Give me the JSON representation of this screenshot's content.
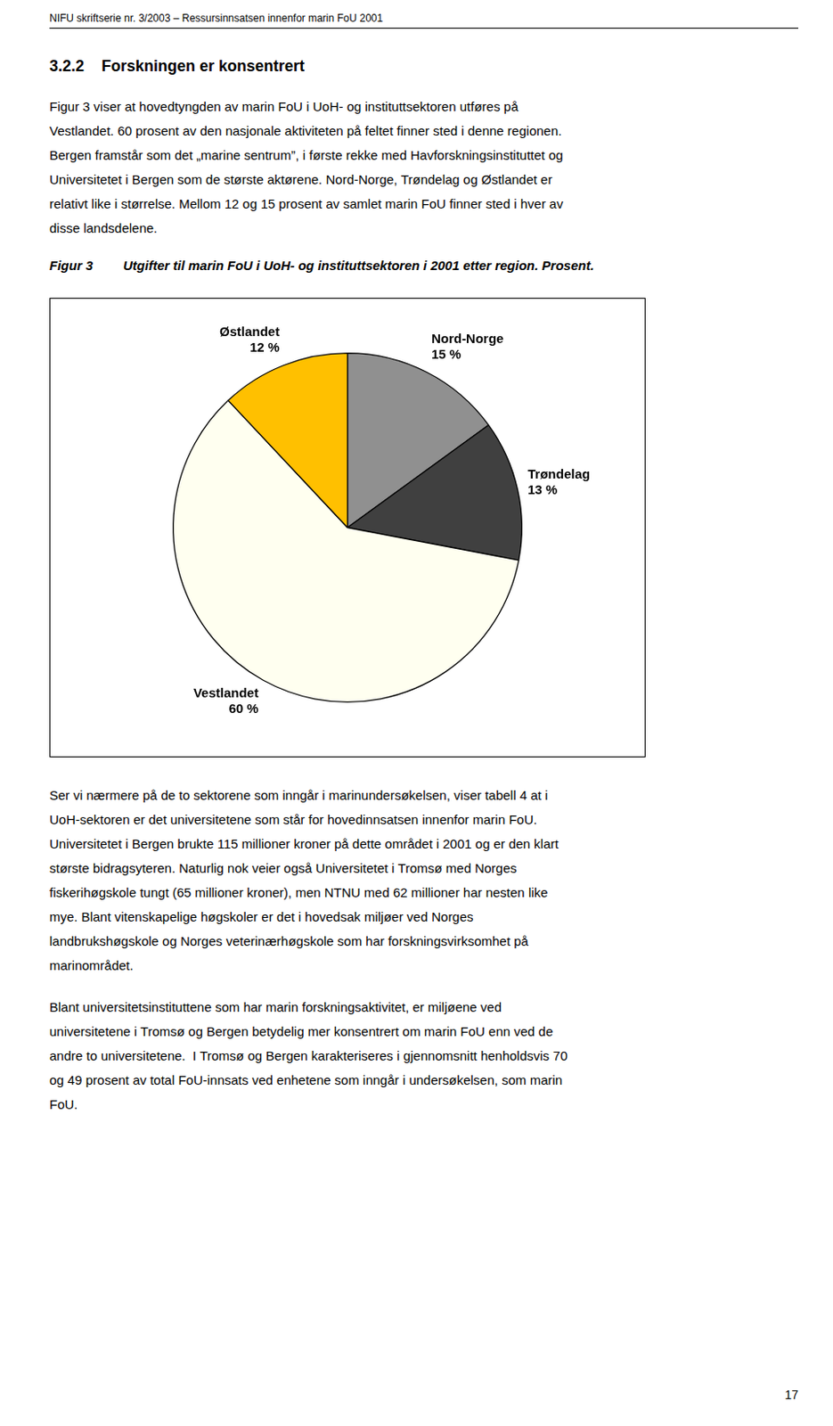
{
  "chart_data": {
    "type": "pie",
    "title": "Figur 3",
    "subtitle": "Utgifter til marin FoU i UoH- og instituttsektoren i 2001 etter region. Prosent.",
    "categories": [
      "Nord-Norge",
      "Trøndelag",
      "Vestlandet",
      "Østlandet"
    ],
    "values": [
      15,
      13,
      60,
      12
    ],
    "value_labels": [
      "15 %",
      "13 %",
      "60 %",
      "12 %"
    ],
    "colors": [
      "#909090",
      "#404040",
      "#FFFFF0",
      "#FFC000"
    ],
    "data_labels": true,
    "annotations": [
      "NIFU skriftserie nr. 3/2003 – Ressursinnsatsen innenfor marin FoU 2001",
      "3.2.2    Forskningen er konsentrert",
      "Figur 3 viser at hovedtyngden av marin FoU i UoH- og instituttsektoren utføres på\nVestlandet. 60 prosent av den nasjonale aktiviteten på feltet finner sted i denne regionen.\nBergen framstår som det „marine sentrum”, i første rekke med Havforskningsinstituttet og\nUniversitetet i Bergen som de største aktørene. Nord-Norge, Trøndelag og Østlandet er\nrelativt like i størrelse. Mellom 12 og 15 prosent av samlet marin FoU finner sted i hver av\ndisse landsdelene.",
      "Ser vi nærmere på de to sektorene som inngår i marinundersøkelsen, viser tabell 4 at i\nUoH-sektoren er det universitetene som står for hovedinnsatsen innenfor marin FoU.\nUniversitetet i Bergen brukte 115 millioner kroner på dette området i 2001 og er den klart\nstørste bidragsyteren. Naturlig nok veier også Universitetet i Tromsø med Norges\nfiskerihøgskole tungt (65 millioner kroner), men NTNU med 62 millioner har nesten like\nmye. Blant vitenskapelige høgskoler er det i hovedsak miljøer ved Norges\nlandbrukshøgskole og Norges veterinærhøgskole som har forskningsvirksomhet på\nmarinområdet.",
      "Blant universitetsinstituttene som har marin forskningsaktivitet, er miljøene ved\nuniversitetene i Tromsø og Bergen betydelig mer konsentrert om marin FoU enn ved de\nandre to universitetene.  I Tromsø og Bergen karakteriseres i gjennomsnitt henholdsvis 70\nog 49 prosent av total FoU-innsats ved enhetene som inngår i undersøkelsen, som marin\nFoU.",
      "17"
    ]
  }
}
